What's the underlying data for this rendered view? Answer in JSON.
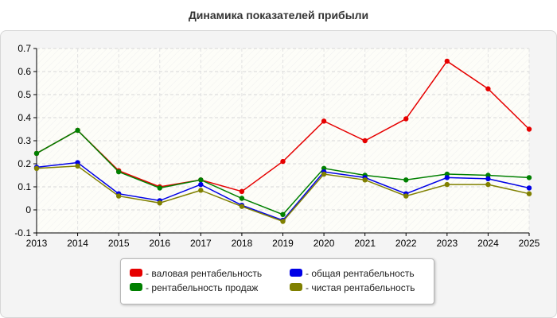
{
  "chart_data": {
    "type": "line",
    "title": "Динамика показателей прибыли",
    "xlabel": "",
    "ylabel": "",
    "x": [
      2013,
      2014,
      2015,
      2016,
      2017,
      2018,
      2019,
      2020,
      2021,
      2022,
      2023,
      2024,
      2025
    ],
    "ylim": [
      -0.1,
      0.7
    ],
    "yticks": [
      -0.1,
      0,
      0.1,
      0.2,
      0.3,
      0.4,
      0.5,
      0.6,
      0.7
    ],
    "grid": true,
    "legend_position": "bottom",
    "series": [
      {
        "name": "- валовая рентабельность",
        "color": "#e60000",
        "values": [
          0.245,
          0.345,
          0.17,
          0.1,
          0.13,
          0.08,
          0.21,
          0.385,
          0.3,
          0.395,
          0.645,
          0.525,
          0.35
        ]
      },
      {
        "name": "- рентабельность продаж",
        "color": "#008000",
        "values": [
          0.245,
          0.345,
          0.165,
          0.095,
          0.13,
          0.05,
          -0.02,
          0.18,
          0.15,
          0.13,
          0.155,
          0.15,
          0.14
        ]
      },
      {
        "name": "- общая рентабельность",
        "color": "#0000e6",
        "values": [
          0.185,
          0.205,
          0.07,
          0.04,
          0.11,
          0.02,
          -0.045,
          0.165,
          0.14,
          0.07,
          0.14,
          0.135,
          0.095
        ]
      },
      {
        "name": "- чистая рентабельность",
        "color": "#808000",
        "values": [
          0.18,
          0.19,
          0.06,
          0.03,
          0.085,
          0.015,
          -0.05,
          0.155,
          0.13,
          0.06,
          0.11,
          0.11,
          0.07
        ]
      }
    ]
  }
}
